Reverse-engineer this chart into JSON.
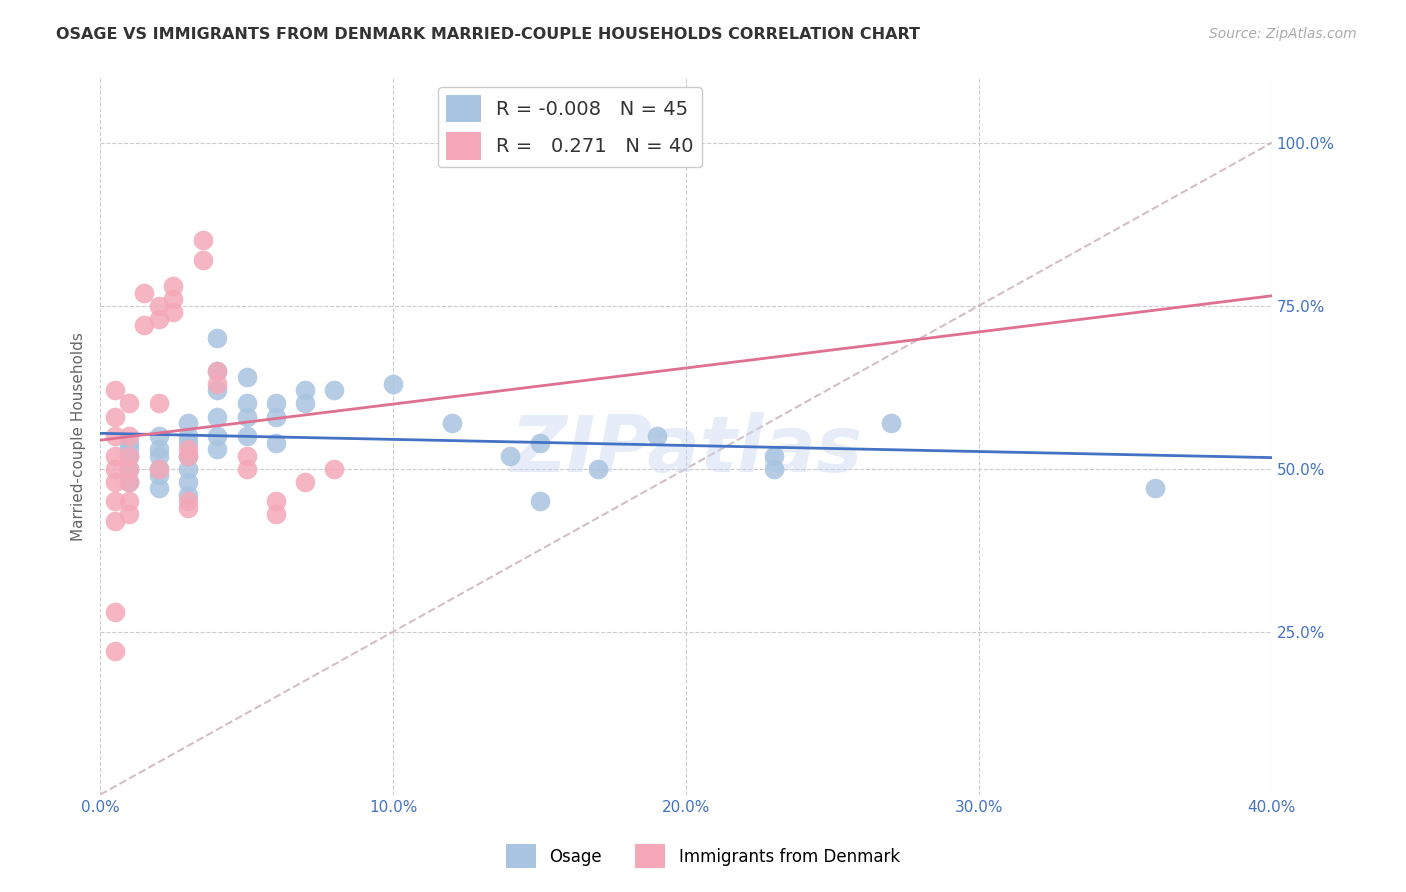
{
  "title": "OSAGE VS IMMIGRANTS FROM DENMARK MARRIED-COUPLE HOUSEHOLDS CORRELATION CHART",
  "source": "Source: ZipAtlas.com",
  "ylabel": "Married-couple Households",
  "xlim": [
    0.0,
    0.4
  ],
  "ylim": [
    0.0,
    1.1
  ],
  "xtick_labels": [
    "0.0%",
    "10.0%",
    "20.0%",
    "30.0%",
    "40.0%"
  ],
  "xtick_vals": [
    0.0,
    0.1,
    0.2,
    0.3,
    0.4
  ],
  "ytick_labels": [
    "25.0%",
    "50.0%",
    "75.0%",
    "100.0%"
  ],
  "ytick_vals": [
    0.25,
    0.5,
    0.75,
    1.0
  ],
  "R_osage": -0.008,
  "N_osage": 45,
  "R_denmark": 0.271,
  "N_denmark": 40,
  "background_color": "#ffffff",
  "grid_color": "#cccccc",
  "osage_color": "#a8c4e0",
  "denmark_color": "#f4a8b8",
  "osage_line_color": "#4472c4",
  "denmark_line_color": "#e07090",
  "diagonal_color": "#c8b0b8",
  "watermark": "ZIPatlas",
  "title_color": "#333333",
  "source_color": "#aaaaaa",
  "axis_color": "#4472c4",
  "osage_scatter": [
    [
      0.01,
      0.54
    ],
    [
      0.01,
      0.52
    ],
    [
      0.01,
      0.5
    ],
    [
      0.01,
      0.48
    ],
    [
      0.01,
      0.53
    ],
    [
      0.02,
      0.55
    ],
    [
      0.02,
      0.52
    ],
    [
      0.02,
      0.5
    ],
    [
      0.02,
      0.49
    ],
    [
      0.02,
      0.47
    ],
    [
      0.02,
      0.53
    ],
    [
      0.03,
      0.57
    ],
    [
      0.03,
      0.55
    ],
    [
      0.03,
      0.54
    ],
    [
      0.03,
      0.52
    ],
    [
      0.03,
      0.5
    ],
    [
      0.03,
      0.48
    ],
    [
      0.03,
      0.46
    ],
    [
      0.04,
      0.7
    ],
    [
      0.04,
      0.65
    ],
    [
      0.04,
      0.62
    ],
    [
      0.04,
      0.58
    ],
    [
      0.04,
      0.55
    ],
    [
      0.04,
      0.53
    ],
    [
      0.05,
      0.64
    ],
    [
      0.05,
      0.6
    ],
    [
      0.05,
      0.58
    ],
    [
      0.05,
      0.55
    ],
    [
      0.06,
      0.6
    ],
    [
      0.06,
      0.58
    ],
    [
      0.06,
      0.54
    ],
    [
      0.07,
      0.62
    ],
    [
      0.07,
      0.6
    ],
    [
      0.08,
      0.62
    ],
    [
      0.1,
      0.63
    ],
    [
      0.12,
      0.57
    ],
    [
      0.14,
      0.52
    ],
    [
      0.15,
      0.54
    ],
    [
      0.15,
      0.45
    ],
    [
      0.17,
      0.5
    ],
    [
      0.19,
      0.55
    ],
    [
      0.23,
      0.52
    ],
    [
      0.23,
      0.5
    ],
    [
      0.27,
      0.57
    ],
    [
      0.36,
      0.47
    ]
  ],
  "denmark_scatter": [
    [
      0.005,
      0.62
    ],
    [
      0.005,
      0.58
    ],
    [
      0.005,
      0.55
    ],
    [
      0.005,
      0.52
    ],
    [
      0.005,
      0.5
    ],
    [
      0.005,
      0.48
    ],
    [
      0.005,
      0.45
    ],
    [
      0.005,
      0.42
    ],
    [
      0.005,
      0.28
    ],
    [
      0.005,
      0.22
    ],
    [
      0.01,
      0.6
    ],
    [
      0.01,
      0.55
    ],
    [
      0.01,
      0.52
    ],
    [
      0.01,
      0.5
    ],
    [
      0.01,
      0.48
    ],
    [
      0.01,
      0.45
    ],
    [
      0.01,
      0.43
    ],
    [
      0.015,
      0.77
    ],
    [
      0.015,
      0.72
    ],
    [
      0.02,
      0.75
    ],
    [
      0.02,
      0.73
    ],
    [
      0.02,
      0.6
    ],
    [
      0.02,
      0.5
    ],
    [
      0.025,
      0.78
    ],
    [
      0.025,
      0.76
    ],
    [
      0.025,
      0.74
    ],
    [
      0.03,
      0.53
    ],
    [
      0.03,
      0.52
    ],
    [
      0.03,
      0.45
    ],
    [
      0.03,
      0.44
    ],
    [
      0.035,
      0.85
    ],
    [
      0.035,
      0.82
    ],
    [
      0.04,
      0.65
    ],
    [
      0.04,
      0.63
    ],
    [
      0.05,
      0.52
    ],
    [
      0.05,
      0.5
    ],
    [
      0.06,
      0.45
    ],
    [
      0.06,
      0.43
    ],
    [
      0.07,
      0.48
    ],
    [
      0.08,
      0.5
    ]
  ]
}
